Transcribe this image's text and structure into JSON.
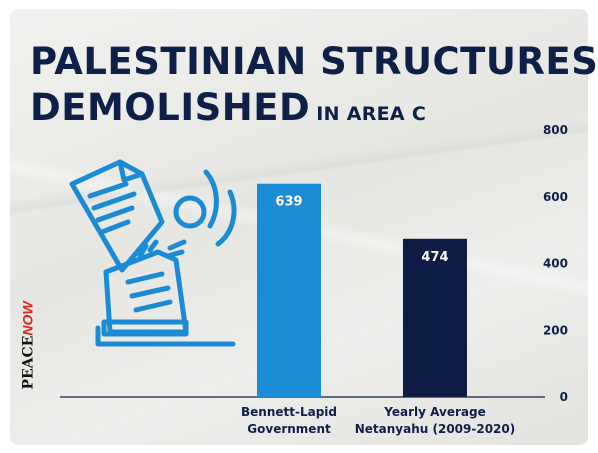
{
  "header": {
    "title_line1": "PALESTINIAN STRUCTURES",
    "title_line2": "DEMOLISHED",
    "subtitle": "IN AREA C"
  },
  "logo": {
    "part1": "PEACE",
    "part2": "NOW"
  },
  "illustration": {
    "icon": "demolition-order-document-icon"
  },
  "colors": {
    "title": "#0f2048",
    "bar_bennett_lapid": "#1b8bd6",
    "bar_netanyahu": "#0d1b45",
    "illustration": "#1b8bd6",
    "logo_accent": "#e2231a"
  },
  "chart_data": {
    "type": "bar",
    "title": "PALESTINIAN STRUCTURES DEMOLISHED IN AREA C",
    "categories": [
      "Bennett-Lapid Government",
      "Yearly Average Netanyahu (2009-2020)"
    ],
    "category_lines": [
      [
        "Bennett-Lapid",
        "Government"
      ],
      [
        "Yearly Average",
        "Netanyahu (2009-2020)"
      ]
    ],
    "values": [
      639,
      474
    ],
    "value_labels": [
      "639",
      "474"
    ],
    "ylim": [
      0,
      800
    ],
    "yticks": [
      0,
      200,
      400,
      600,
      800
    ],
    "ytick_labels": [
      "0",
      "200",
      "400",
      "600",
      "800"
    ],
    "y_axis_side": "right",
    "grid": false,
    "legend": "none"
  }
}
